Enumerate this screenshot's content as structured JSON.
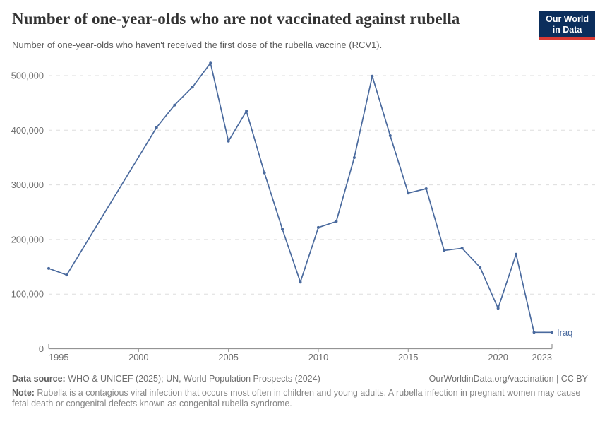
{
  "header": {
    "title": "Number of one-year-olds who are not vaccinated against rubella",
    "subtitle": "Number of one-year-olds who haven't received the first dose of the rubella vaccine (RCV1).",
    "logo": {
      "line1": "Our World",
      "line2": "in Data",
      "bg_color": "#0b2e5c",
      "accent_color": "#d93a34"
    }
  },
  "chart_data": {
    "type": "line",
    "title": "Number of one-year-olds who are not vaccinated against rubella",
    "xlabel": "",
    "ylabel": "",
    "x_range": [
      1995,
      2023
    ],
    "y_range": [
      0,
      500000
    ],
    "x_ticks": [
      1995,
      2000,
      2005,
      2010,
      2015,
      2020,
      2023
    ],
    "y_ticks": [
      0,
      100000,
      200000,
      300000,
      400000,
      500000
    ],
    "grid": "horizontal-dashed",
    "legend_position": "end-of-line",
    "grid_color": "#dddddd",
    "axis_color": "#949494",
    "series": [
      {
        "name": "Iraq",
        "color": "#4a6a9e",
        "years": [
          1995,
          1996,
          2001,
          2002,
          2003,
          2004,
          2005,
          2006,
          2007,
          2008,
          2009,
          2010,
          2011,
          2012,
          2013,
          2014,
          2015,
          2016,
          2017,
          2018,
          2019,
          2020,
          2021,
          2022,
          2023
        ],
        "values": [
          147000,
          135000,
          405000,
          446000,
          479000,
          523000,
          380000,
          435000,
          322000,
          219000,
          122000,
          222000,
          233000,
          350000,
          499000,
          390000,
          285000,
          293000,
          180000,
          184000,
          149000,
          74000,
          173000,
          30000,
          30000
        ]
      }
    ]
  },
  "footer": {
    "datasource_label": "Data source:",
    "datasource_text": " WHO & UNICEF (2025); UN, World Population Prospects (2024)",
    "link": "OurWorldinData.org/vaccination | CC BY",
    "note_label": "Note:",
    "note_text": " Rubella is a contagious viral infection that occurs most often in children and young adults. A rubella infection in pregnant women may cause fetal death or congenital defects known as congenital rubella syndrome."
  }
}
